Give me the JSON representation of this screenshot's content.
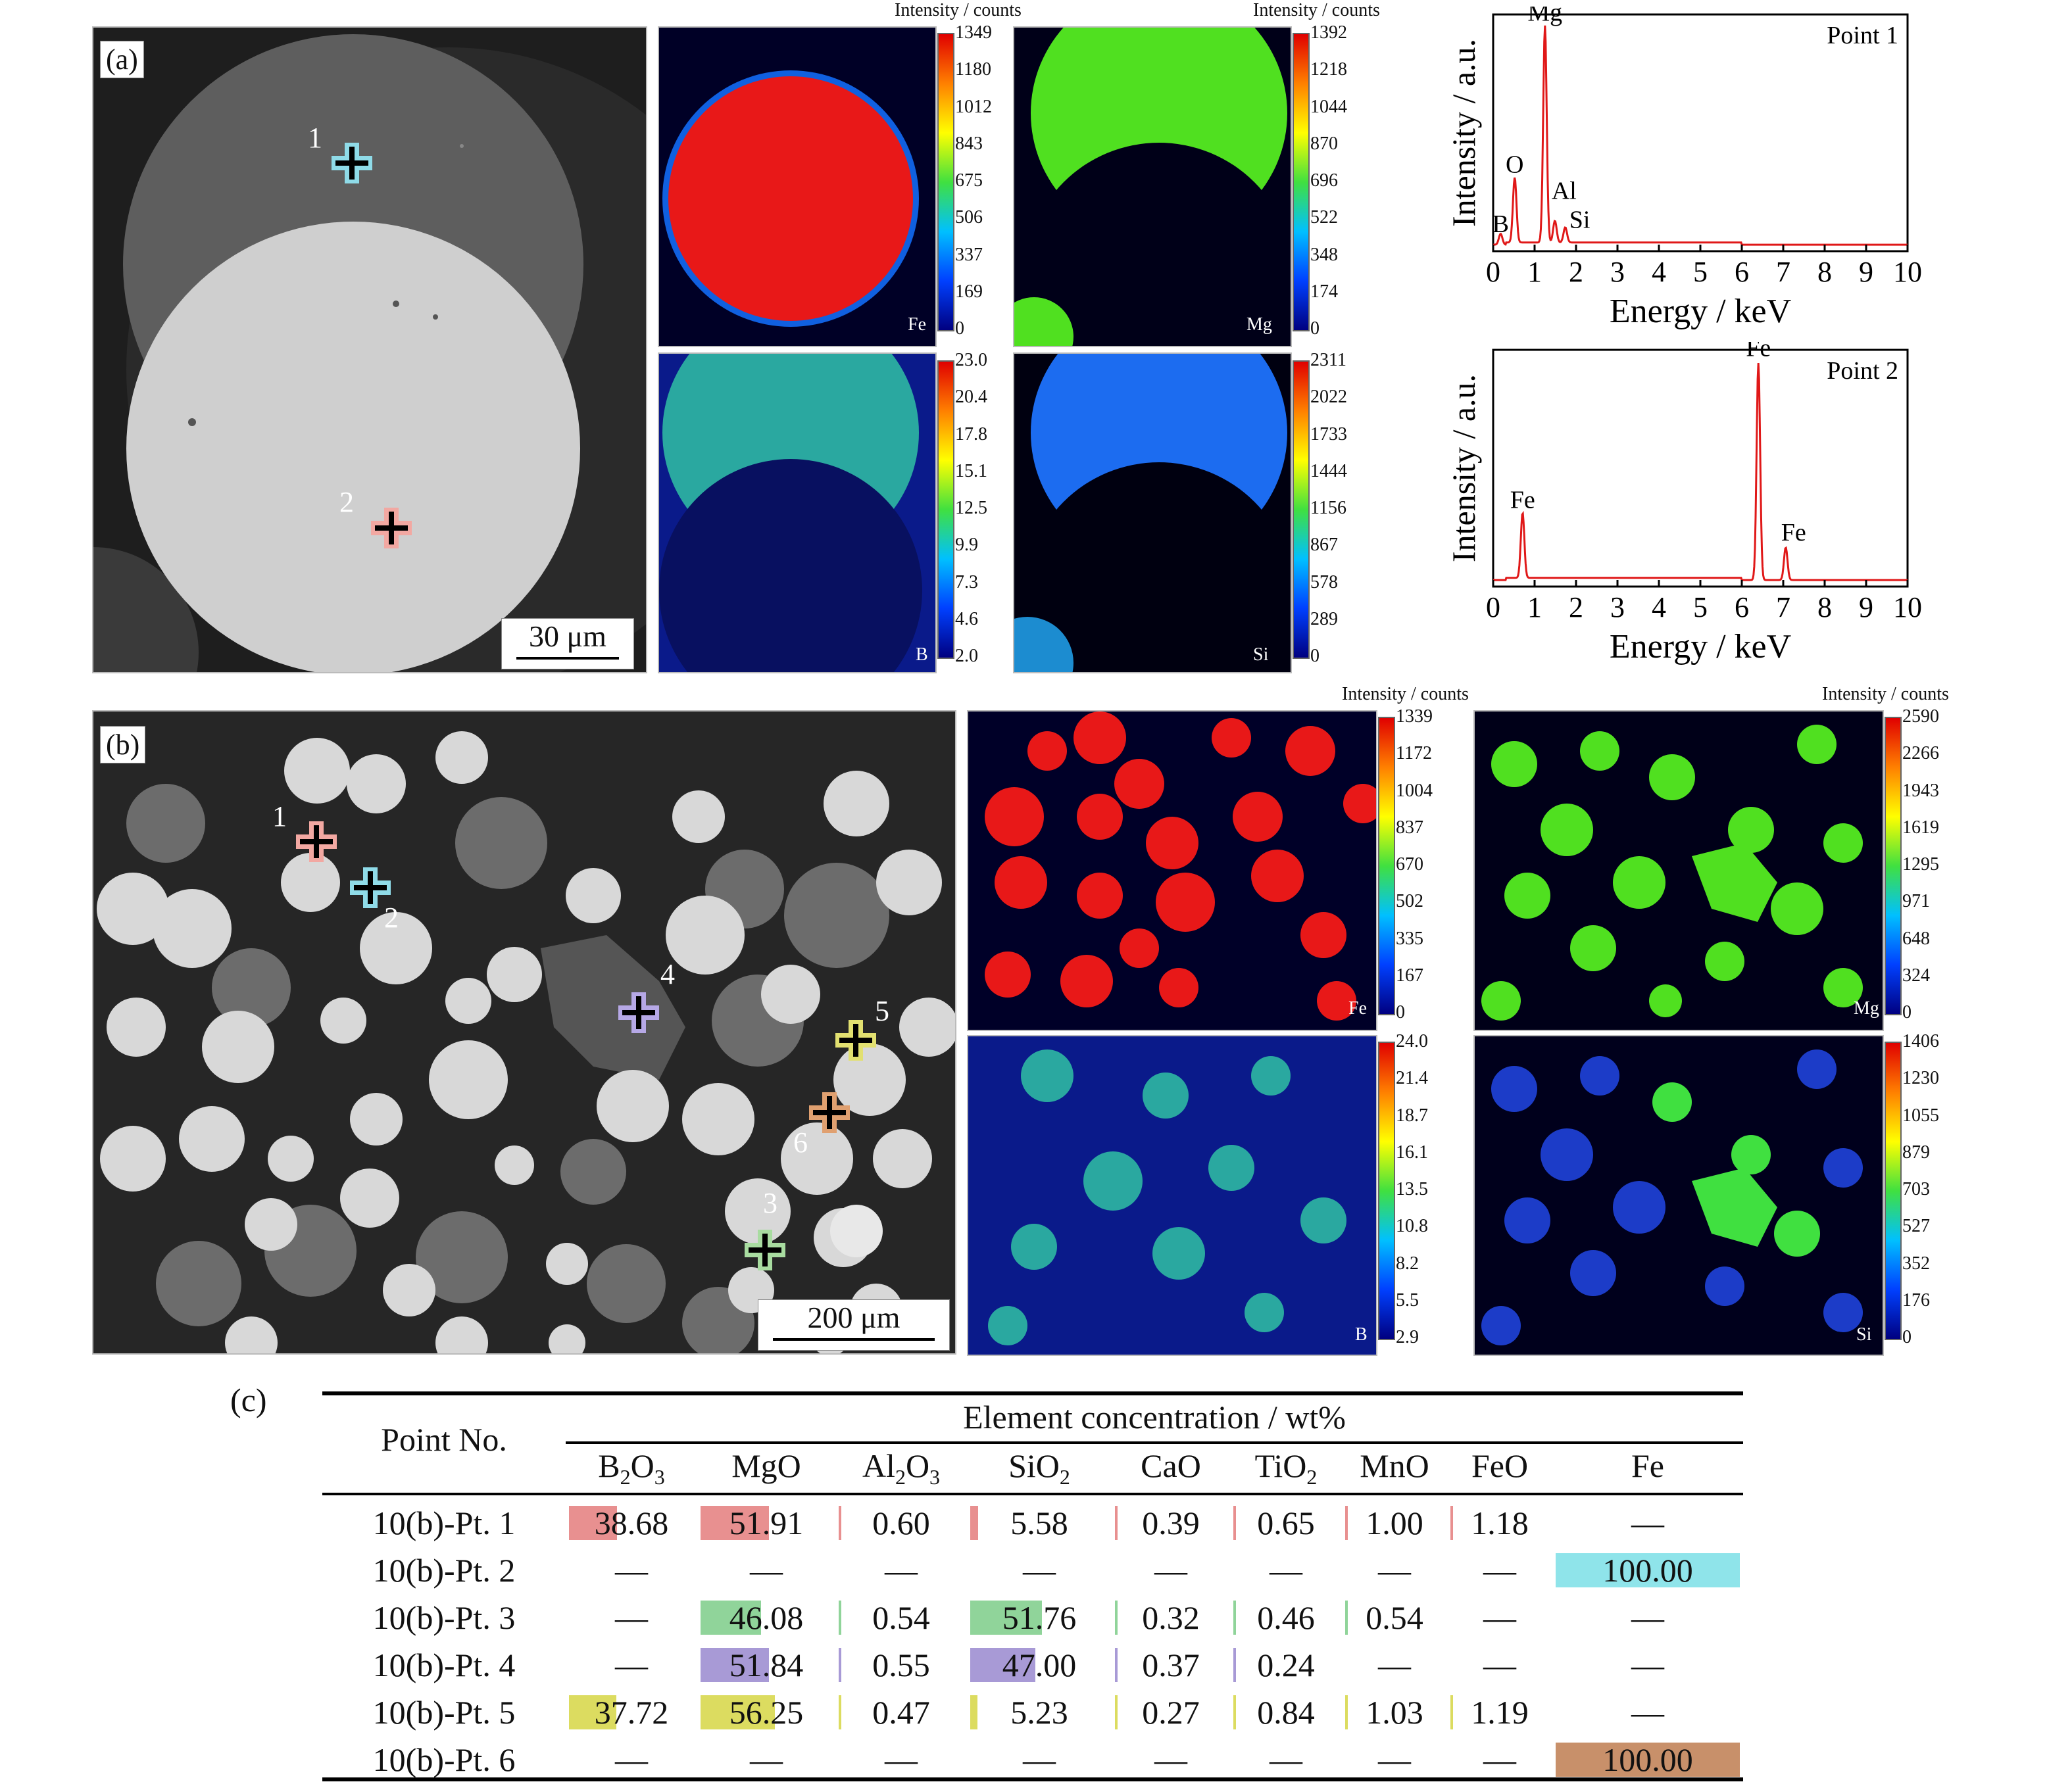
{
  "panel_a": {
    "label": "(a)",
    "scalebar": "30 μm",
    "markers": [
      {
        "label": "1",
        "color": "#8fdbe8"
      },
      {
        "label": "2",
        "color": "#f2a8a2"
      }
    ],
    "maps": [
      {
        "element": "Fe",
        "title": "Intensity / counts",
        "ticks": [
          "1349",
          "1180",
          "1012",
          "843",
          "675",
          "506",
          "337",
          "169",
          "0"
        ]
      },
      {
        "element": "Mg",
        "title": "Intensity / counts",
        "ticks": [
          "1392",
          "1218",
          "1044",
          "870",
          "696",
          "522",
          "348",
          "174",
          "0"
        ]
      },
      {
        "element": "B",
        "title": "",
        "ticks": [
          "23.0",
          "20.4",
          "17.8",
          "15.1",
          "12.5",
          "9.9",
          "7.3",
          "4.6",
          "2.0"
        ]
      },
      {
        "element": "Si",
        "title": "",
        "ticks": [
          "2311",
          "2022",
          "1733",
          "1444",
          "1156",
          "867",
          "578",
          "289",
          "0"
        ]
      }
    ]
  },
  "spectra": [
    {
      "title": "Point 1",
      "xlabel": "Energy / keV",
      "ylabel": "Intensity / a.u.",
      "xticks": [
        "0",
        "1",
        "2",
        "3",
        "4",
        "5",
        "6",
        "7",
        "8",
        "9",
        "10"
      ],
      "peak_labels": [
        "B",
        "O",
        "Mg",
        "Al",
        "Si"
      ]
    },
    {
      "title": "Point 2",
      "xlabel": "Energy / keV",
      "ylabel": "Intensity / a.u.",
      "xticks": [
        "0",
        "1",
        "2",
        "3",
        "4",
        "5",
        "6",
        "7",
        "8",
        "9",
        "10"
      ],
      "peak_labels": [
        "Fe",
        "Fe",
        "Fe"
      ]
    }
  ],
  "chart_data": [
    {
      "type": "line",
      "title": "Point 1",
      "xlabel": "Energy / keV",
      "ylabel": "Intensity / a.u.",
      "xlim": [
        0,
        10
      ],
      "ylim": [
        0,
        1
      ],
      "peaks": [
        {
          "x": 0.18,
          "y": 0.05,
          "label": "B"
        },
        {
          "x": 0.52,
          "y": 0.3,
          "label": "O"
        },
        {
          "x": 1.25,
          "y": 1.0,
          "label": "Mg"
        },
        {
          "x": 1.49,
          "y": 0.1,
          "label": "Al"
        },
        {
          "x": 1.74,
          "y": 0.07,
          "label": "Si"
        }
      ]
    },
    {
      "type": "line",
      "title": "Point 2",
      "xlabel": "Energy / keV",
      "ylabel": "Intensity / a.u.",
      "xlim": [
        0,
        10
      ],
      "ylim": [
        0,
        1
      ],
      "peaks": [
        {
          "x": 0.71,
          "y": 0.3,
          "label": "Fe"
        },
        {
          "x": 6.4,
          "y": 1.0,
          "label": "Fe"
        },
        {
          "x": 7.06,
          "y": 0.15,
          "label": "Fe"
        }
      ]
    }
  ],
  "panel_b": {
    "label": "(b)",
    "scalebar": "200 μm",
    "markers": [
      {
        "label": "1",
        "color": "#f2a8a2"
      },
      {
        "label": "2",
        "color": "#8fdbe8"
      },
      {
        "label": "3",
        "color": "#a8dca0"
      },
      {
        "label": "4",
        "color": "#b6a8e6"
      },
      {
        "label": "5",
        "color": "#e2e070"
      },
      {
        "label": "6",
        "color": "#e0a070"
      }
    ],
    "maps": [
      {
        "element": "Fe",
        "title": "Intensity / counts",
        "ticks": [
          "1339",
          "1172",
          "1004",
          "837",
          "670",
          "502",
          "335",
          "167",
          "0"
        ]
      },
      {
        "element": "Mg",
        "title": "Intensity / counts",
        "ticks": [
          "2590",
          "2266",
          "1943",
          "1619",
          "1295",
          "971",
          "648",
          "324",
          "0"
        ]
      },
      {
        "element": "B",
        "title": "",
        "ticks": [
          "24.0",
          "21.4",
          "18.7",
          "16.1",
          "13.5",
          "10.8",
          "8.2",
          "5.5",
          "2.9"
        ]
      },
      {
        "element": "Si",
        "title": "",
        "ticks": [
          "1406",
          "1230",
          "1055",
          "879",
          "703",
          "527",
          "352",
          "176",
          "0"
        ]
      }
    ]
  },
  "table": {
    "label": "(c)",
    "row_header": "Point No.",
    "group_header": "Element concentration / wt%",
    "columns": [
      {
        "base": "B",
        "sub": "2",
        "tail": "O",
        "sub2": "3"
      },
      {
        "base": "MgO",
        "sub": "",
        "tail": "",
        "sub2": ""
      },
      {
        "base": "Al",
        "sub": "2",
        "tail": "O",
        "sub2": "3"
      },
      {
        "base": "SiO",
        "sub": "2",
        "tail": "",
        "sub2": ""
      },
      {
        "base": "CaO",
        "sub": "",
        "tail": "",
        "sub2": ""
      },
      {
        "base": "TiO",
        "sub": "2",
        "tail": "",
        "sub2": ""
      },
      {
        "base": "MnO",
        "sub": "",
        "tail": "",
        "sub2": ""
      },
      {
        "base": "FeO",
        "sub": "",
        "tail": "",
        "sub2": ""
      },
      {
        "base": "Fe",
        "sub": "",
        "tail": "",
        "sub2": ""
      }
    ],
    "rows": [
      {
        "name": "10(b)-Pt. 1",
        "color": "#e89090",
        "values": [
          "38.68",
          "51.91",
          "0.60",
          "5.58",
          "0.39",
          "0.65",
          "1.00",
          "1.18",
          "—"
        ],
        "fill": [
          0.3868,
          0.5191,
          0.006,
          0.0558,
          0.0039,
          0.0065,
          0.01,
          0.0118,
          0
        ]
      },
      {
        "name": "10(b)-Pt. 2",
        "color": "#8fe4ea",
        "values": [
          "—",
          "—",
          "—",
          "—",
          "—",
          "—",
          "—",
          "—",
          "100.00"
        ],
        "fill": [
          0,
          0,
          0,
          0,
          0,
          0,
          0,
          0,
          1
        ]
      },
      {
        "name": "10(b)-Pt. 3",
        "color": "#90d49a",
        "values": [
          "—",
          "46.08",
          "0.54",
          "51.76",
          "0.32",
          "0.46",
          "0.54",
          "—",
          "—"
        ],
        "fill": [
          0,
          0.4608,
          0.0054,
          0.5176,
          0.0032,
          0.0046,
          0.0054,
          0,
          0
        ]
      },
      {
        "name": "10(b)-Pt. 4",
        "color": "#a89ad6",
        "values": [
          "—",
          "51.84",
          "0.55",
          "47.00",
          "0.37",
          "0.24",
          "—",
          "—",
          "—"
        ],
        "fill": [
          0,
          0.5184,
          0.0055,
          0.47,
          0.0037,
          0.0024,
          0,
          0,
          0
        ]
      },
      {
        "name": "10(b)-Pt. 5",
        "color": "#dcdc60",
        "values": [
          "37.72",
          "56.25",
          "0.47",
          "5.23",
          "0.27",
          "0.84",
          "1.03",
          "1.19",
          "—"
        ],
        "fill": [
          0.3772,
          0.5625,
          0.0047,
          0.0523,
          0.0027,
          0.0084,
          0.0103,
          0.0119,
          0
        ]
      },
      {
        "name": "10(b)-Pt. 6",
        "color": "#c8906a",
        "values": [
          "—",
          "—",
          "—",
          "—",
          "—",
          "—",
          "—",
          "—",
          "100.00"
        ],
        "fill": [
          0,
          0,
          0,
          0,
          0,
          0,
          0,
          0,
          1
        ]
      }
    ]
  }
}
